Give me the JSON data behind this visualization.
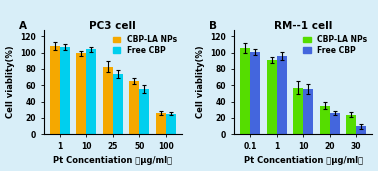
{
  "panel_A": {
    "title": "PC3 cell",
    "label": "A",
    "x_labels": [
      "1",
      "10",
      "25",
      "50",
      "100"
    ],
    "xlabel": "Pt Concentiation （μg/ml）",
    "ylabel": "Cell viablity(%)",
    "ylim": [
      0,
      128
    ],
    "yticks": [
      0,
      20,
      40,
      60,
      80,
      100,
      120
    ],
    "cbp_la_values": [
      108,
      99,
      83,
      65,
      26
    ],
    "cbp_la_errors": [
      5,
      3,
      7,
      4,
      3
    ],
    "free_cbp_values": [
      107,
      104,
      74,
      55,
      25
    ],
    "free_cbp_errors": [
      4,
      3,
      5,
      5,
      2
    ],
    "color_la": "#F5A800",
    "color_free": "#00CFEE"
  },
  "panel_B": {
    "title": "RM--1 cell",
    "label": "B",
    "x_labels": [
      "0.1",
      "1",
      "10",
      "20",
      "30"
    ],
    "xlabel": "Pt Concentiation （μg/ml）",
    "ylabel": "Cell viablity(%)",
    "ylim": [
      0,
      128
    ],
    "yticks": [
      0,
      20,
      40,
      60,
      80,
      100,
      120
    ],
    "cbp_la_values": [
      106,
      91,
      57,
      35,
      24
    ],
    "cbp_la_errors": [
      6,
      4,
      8,
      4,
      3
    ],
    "free_cbp_values": [
      101,
      96,
      55,
      26,
      10
    ],
    "free_cbp_errors": [
      4,
      5,
      6,
      3,
      3
    ],
    "color_la": "#55DD00",
    "color_free": "#4466DD"
  },
  "legend_labels": [
    "CBP-LA NPs",
    "Free CBP"
  ],
  "bar_width": 0.38,
  "title_fontsize": 7.5,
  "label_fontsize": 6,
  "tick_fontsize": 5.5,
  "legend_fontsize": 5.5,
  "bg_color": "#D8EEF8"
}
